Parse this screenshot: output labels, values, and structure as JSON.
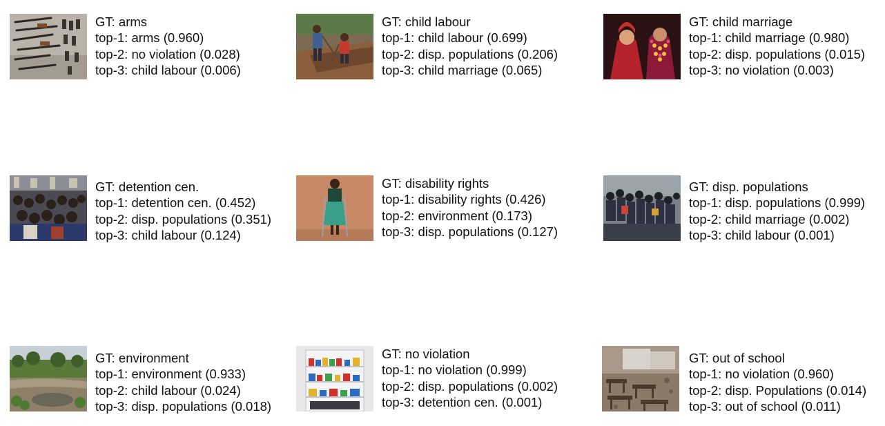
{
  "examples": [
    {
      "image": "weapons-on-floor-photo",
      "gt": "GT: arms",
      "top1": "top-1: arms (0.960)",
      "top2": "top-2: no violation (0.028)",
      "top3": "top-3: child labour (0.006)"
    },
    {
      "image": "children-digging-photo",
      "gt": "GT: child labour",
      "top1": "top-1: child labour (0.699)",
      "top2": "top-2: disp. populations (0.206)",
      "top3": "top-3: child marriage (0.065)"
    },
    {
      "image": "bride-and-groom-photo",
      "gt": "GT: child marriage",
      "top1": "top-1: child marriage (0.980)",
      "top2": "top-2: disp. populations (0.015)",
      "top3": "top-3: no violation (0.003)"
    },
    {
      "image": "crowded-cell-photo",
      "gt": "GT: detention cen.",
      "top1": "top-1: detention cen. (0.452)",
      "top2": "top-2: disp. populations (0.351)",
      "top3": "top-3: child labour (0.124)"
    },
    {
      "image": "girl-with-crutches-photo",
      "gt": "GT: disability rights",
      "top1": "top-1: disability rights (0.426)",
      "top2": "top-2: environment (0.173)",
      "top3": "top-3: disp. populations (0.127)"
    },
    {
      "image": "crowded-boat-photo",
      "gt": "GT: disp. populations",
      "top1": "top-1: disp. populations (0.999)",
      "top2": "top-2: child marriage (0.002)",
      "top3": "top-3: child labour (0.001)"
    },
    {
      "image": "flooded-river-photo",
      "gt": "GT: environment",
      "top1": "top-1: environment (0.933)",
      "top2": "top-2: child labour (0.024)",
      "top3": "top-3: disp. populations (0.018)"
    },
    {
      "image": "store-shelves-photo",
      "gt": "GT: no violation",
      "top1": "top-1: no violation (0.999)",
      "top2": "top-2: disp. populations (0.002)",
      "top3": "top-3: detention cen. (0.001)"
    },
    {
      "image": "damaged-classroom-photo",
      "gt": "GT: out of school",
      "top1": "top-1: no violation (0.960)",
      "top2": "top-2: disp. Populations (0.014)",
      "top3": "top-3: out of school (0.011)"
    }
  ]
}
